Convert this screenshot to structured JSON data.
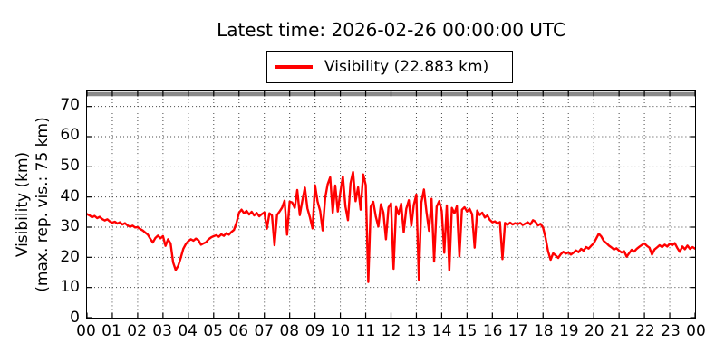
{
  "title": "Latest time: 2026-02-26 00:00:00 UTC",
  "legend": {
    "label": "Visibility (22.883 km)"
  },
  "y_axis": {
    "label_line1": "Visibility (km)",
    "label_line2": "(max. rep. vis.: 75 km)"
  },
  "colors": {
    "series": "#ff0000",
    "max_line": "#8a8a8a",
    "grid": "#444444",
    "axis": "#000000",
    "background": "#ffffff"
  },
  "chart_data": {
    "type": "line",
    "title": "Latest time: 2026-02-26 00:00:00 UTC",
    "xlabel": "",
    "ylabel": "Visibility (km) (max. rep. vis.: 75 km)",
    "ylim": [
      0,
      75
    ],
    "xlim_hours": [
      0,
      24
    ],
    "grid": "dotted",
    "legend_position": "top-center-above-axes",
    "y_ticks": [
      0,
      10,
      20,
      30,
      40,
      50,
      60,
      70
    ],
    "x_tick_labels": [
      "00",
      "01",
      "02",
      "03",
      "04",
      "05",
      "06",
      "07",
      "08",
      "09",
      "10",
      "11",
      "12",
      "13",
      "14",
      "15",
      "16",
      "17",
      "18",
      "19",
      "20",
      "21",
      "22",
      "23",
      "00"
    ],
    "max_reported_visibility_km": 75,
    "latest_value_km": 22.883,
    "series": [
      {
        "name": "Visibility (22.883 km)",
        "color": "#ff0000",
        "x_start_hour": 0,
        "x_step_hours": 0.1,
        "values": [
          34.3,
          33.9,
          33.3,
          33.7,
          33.0,
          33.4,
          32.7,
          32.2,
          32.6,
          31.9,
          31.5,
          31.8,
          31.2,
          31.6,
          30.9,
          31.3,
          30.6,
          30.1,
          30.5,
          29.9,
          30.0,
          29.4,
          28.9,
          28.2,
          27.5,
          26.1,
          24.9,
          26.4,
          27.2,
          26.3,
          27.0,
          23.8,
          26.0,
          24.6,
          18.3,
          15.8,
          17.2,
          19.8,
          22.8,
          24.4,
          25.4,
          26.0,
          25.5,
          26.2,
          25.7,
          24.2,
          24.6,
          25.0,
          26.0,
          26.6,
          27.0,
          27.3,
          26.8,
          27.6,
          27.1,
          28.0,
          27.5,
          28.4,
          29.1,
          31.5,
          34.8,
          35.8,
          34.6,
          35.4,
          34.2,
          35.1,
          33.9,
          34.7,
          33.6,
          34.3,
          34.9,
          29.5,
          34.6,
          33.9,
          24.0,
          34.0,
          35.2,
          36.5,
          38.8,
          27.5,
          38.5,
          38.2,
          36.4,
          42.3,
          34.0,
          38.8,
          43.1,
          36.2,
          33.2,
          29.6,
          43.9,
          38.5,
          35.4,
          28.9,
          39.7,
          44.2,
          46.5,
          34.8,
          43.8,
          35.2,
          41.6,
          46.8,
          36.9,
          32.3,
          44.5,
          48.3,
          38.6,
          43.2,
          35.8,
          47.5,
          44.0,
          11.8,
          36.8,
          38.4,
          33.5,
          30.2,
          37.6,
          34.8,
          26.0,
          36.5,
          37.9,
          16.2,
          36.7,
          34.2,
          37.8,
          28.3,
          36.1,
          38.9,
          30.5,
          37.4,
          40.8,
          12.6,
          38.2,
          42.5,
          35.0,
          28.8,
          39.4,
          18.6,
          36.8,
          38.6,
          35.4,
          21.5,
          37.2,
          15.7,
          36.4,
          34.6,
          37.0,
          20.3,
          35.8,
          36.6,
          35.2,
          36.1,
          34.3,
          23.2,
          35.5,
          34.0,
          34.8,
          33.2,
          33.9,
          32.4,
          31.6,
          31.9,
          31.2,
          31.7,
          19.4,
          31.4,
          30.8,
          31.5,
          30.9,
          31.3,
          31.0,
          31.4,
          30.7,
          31.2,
          31.6,
          30.9,
          32.3,
          31.8,
          30.6,
          31.1,
          29.8,
          26.5,
          22.0,
          19.2,
          21.3,
          20.6,
          19.8,
          21.0,
          21.8,
          21.2,
          21.6,
          20.9,
          21.5,
          22.3,
          21.7,
          22.8,
          22.2,
          23.4,
          22.9,
          23.8,
          24.6,
          26.2,
          27.8,
          26.9,
          25.4,
          24.7,
          23.9,
          23.3,
          22.6,
          23.0,
          22.2,
          21.6,
          22.0,
          20.2,
          21.4,
          22.5,
          21.9,
          22.8,
          23.5,
          24.1,
          24.6,
          23.8,
          23.2,
          20.9,
          22.6,
          23.3,
          24.0,
          23.4,
          24.2,
          23.6,
          24.5,
          24.0,
          24.7,
          23.1,
          21.8,
          23.6,
          22.7,
          23.9,
          22.8,
          23.4,
          22.883
        ]
      }
    ]
  }
}
